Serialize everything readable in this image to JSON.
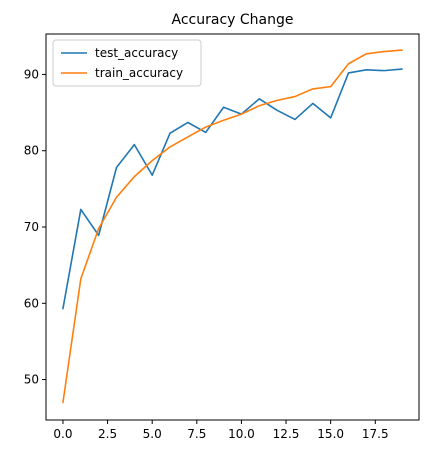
{
  "chart_data": {
    "type": "line",
    "title": "Accuracy Change",
    "xlabel": "",
    "ylabel": "",
    "xlim": [
      -0.95,
      19.95
    ],
    "ylim": [
      44.7,
      95.3
    ],
    "xticks": [
      0.0,
      2.5,
      5.0,
      7.5,
      10.0,
      12.5,
      15.0,
      17.5
    ],
    "xtick_labels": [
      "0.0",
      "2.5",
      "5.0",
      "7.5",
      "10.0",
      "12.5",
      "15.0",
      "17.5"
    ],
    "yticks": [
      50,
      60,
      70,
      80,
      90
    ],
    "ytick_labels": [
      "50",
      "60",
      "70",
      "80",
      "90"
    ],
    "grid": false,
    "legend_position": "top-left",
    "x": [
      0,
      1,
      2,
      3,
      4,
      5,
      6,
      7,
      8,
      9,
      10,
      11,
      12,
      13,
      14,
      15,
      16,
      17,
      18,
      19
    ],
    "series": [
      {
        "name": "test_accuracy",
        "color": "#1f77b4",
        "values": [
          59.3,
          72.3,
          68.9,
          77.8,
          80.8,
          76.8,
          82.3,
          83.7,
          82.4,
          85.7,
          84.8,
          86.8,
          85.3,
          84.1,
          86.2,
          84.3,
          90.2,
          90.6,
          90.5,
          90.7
        ]
      },
      {
        "name": "train_accuracy",
        "color": "#ff7f0e",
        "values": [
          47.0,
          63.2,
          69.8,
          73.9,
          76.6,
          78.7,
          80.5,
          81.8,
          83.1,
          84.0,
          84.8,
          85.9,
          86.6,
          87.1,
          88.1,
          88.4,
          91.4,
          92.7,
          93.0,
          93.2
        ]
      }
    ]
  }
}
